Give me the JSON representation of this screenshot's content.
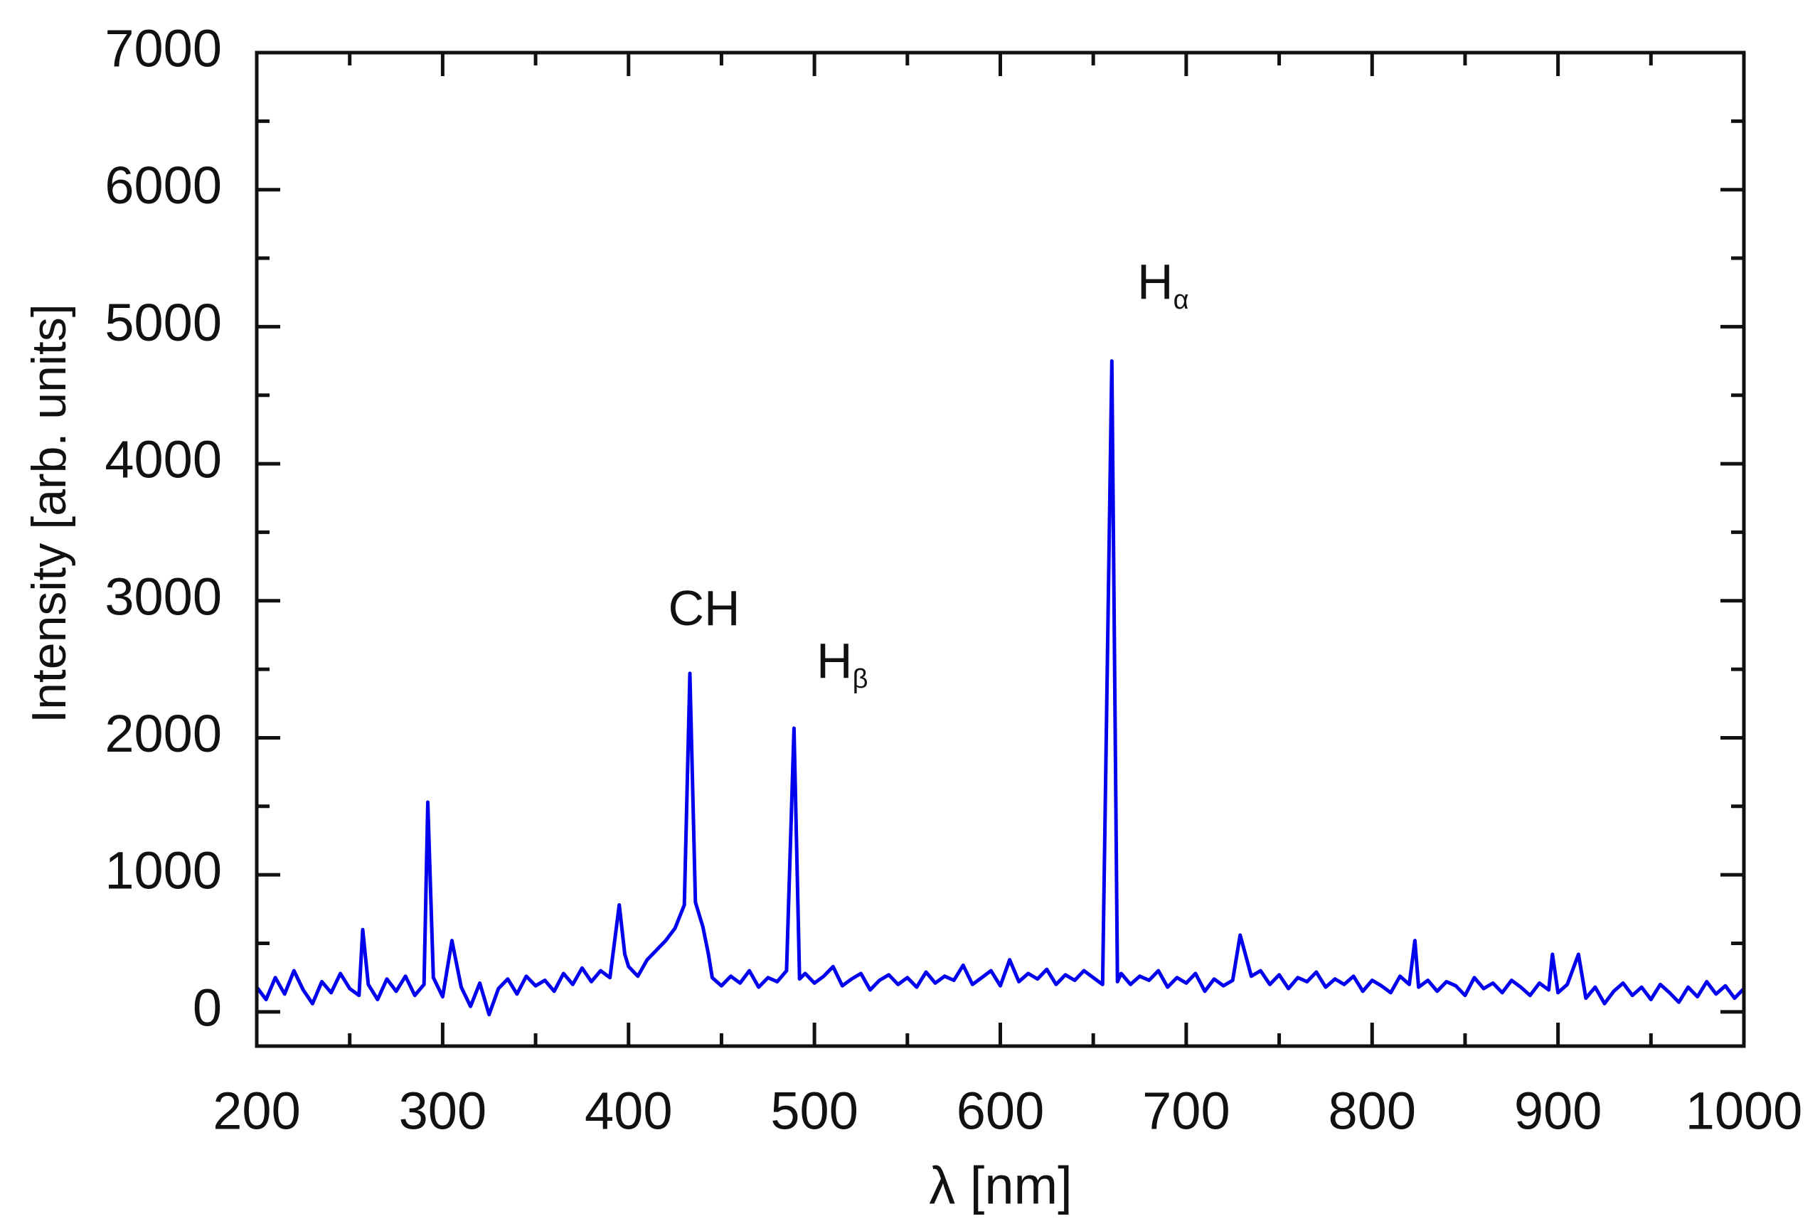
{
  "chart_data": {
    "type": "line",
    "xlabel": "λ [nm]",
    "ylabel": "Intensity [arb. units]",
    "color": "#0000ee",
    "xlim": [
      200,
      1000
    ],
    "xticks": [
      200,
      300,
      400,
      500,
      600,
      700,
      800,
      900,
      1000
    ],
    "xminorticks": [
      250,
      350,
      450,
      550,
      650,
      750,
      850,
      950
    ],
    "ylim": [
      -250,
      7000
    ],
    "yticks": [
      0,
      1000,
      2000,
      3000,
      4000,
      5000,
      6000,
      7000
    ],
    "yminorticks": [
      500,
      1500,
      2500,
      3500,
      4500,
      5500,
      6500
    ],
    "annotations": [
      {
        "text": "CH"
      },
      {
        "text": "H",
        "subscript": "β"
      },
      {
        "text": "H",
        "subscript": "α"
      }
    ],
    "x": [
      200,
      205,
      210,
      215,
      220,
      225,
      230,
      235,
      240,
      245,
      250,
      255,
      257,
      260,
      265,
      270,
      275,
      280,
      285,
      290,
      292,
      295,
      300,
      305,
      310,
      315,
      320,
      325,
      330,
      335,
      340,
      345,
      350,
      355,
      360,
      365,
      370,
      375,
      380,
      385,
      390,
      395,
      398,
      400,
      405,
      410,
      415,
      420,
      425,
      430,
      433,
      436,
      440,
      443,
      445,
      450,
      455,
      460,
      465,
      470,
      475,
      480,
      485,
      489,
      492,
      495,
      500,
      505,
      510,
      515,
      520,
      525,
      530,
      535,
      540,
      545,
      550,
      555,
      560,
      565,
      570,
      575,
      580,
      585,
      590,
      595,
      600,
      605,
      610,
      615,
      620,
      625,
      630,
      635,
      640,
      645,
      650,
      655,
      660,
      663,
      665,
      670,
      675,
      680,
      685,
      690,
      695,
      700,
      705,
      710,
      715,
      720,
      725,
      729,
      735,
      740,
      745,
      750,
      755,
      760,
      765,
      770,
      775,
      780,
      785,
      790,
      795,
      800,
      805,
      810,
      815,
      820,
      823,
      825,
      830,
      835,
      840,
      845,
      850,
      855,
      860,
      865,
      870,
      875,
      880,
      885,
      890,
      895,
      897,
      900,
      905,
      911,
      915,
      920,
      925,
      930,
      935,
      940,
      945,
      950,
      955,
      960,
      965,
      970,
      975,
      980,
      985,
      990,
      995,
      1000
    ],
    "values": [
      180,
      90,
      250,
      130,
      300,
      160,
      60,
      220,
      140,
      280,
      170,
      120,
      600,
      200,
      90,
      240,
      150,
      260,
      120,
      200,
      1530,
      250,
      110,
      520,
      180,
      40,
      210,
      -20,
      170,
      240,
      130,
      260,
      190,
      230,
      150,
      280,
      200,
      320,
      220,
      300,
      250,
      780,
      420,
      330,
      260,
      380,
      450,
      520,
      610,
      780,
      2470,
      800,
      620,
      420,
      250,
      190,
      260,
      210,
      300,
      180,
      250,
      220,
      300,
      2070,
      240,
      280,
      210,
      260,
      330,
      190,
      240,
      280,
      160,
      230,
      270,
      200,
      250,
      180,
      290,
      210,
      260,
      230,
      340,
      200,
      250,
      300,
      190,
      380,
      220,
      280,
      240,
      310,
      200,
      270,
      230,
      300,
      250,
      200,
      4750,
      220,
      280,
      200,
      260,
      230,
      300,
      180,
      250,
      210,
      280,
      150,
      240,
      190,
      230,
      560,
      260,
      300,
      200,
      270,
      170,
      250,
      220,
      290,
      180,
      240,
      200,
      260,
      150,
      230,
      190,
      140,
      260,
      200,
      520,
      180,
      230,
      150,
      220,
      190,
      120,
      250,
      170,
      210,
      140,
      230,
      180,
      120,
      210,
      160,
      420,
      140,
      200,
      420,
      100,
      180,
      60,
      150,
      210,
      120,
      180,
      90,
      200,
      140,
      70,
      180,
      110,
      220,
      130,
      190,
      100,
      170
    ]
  }
}
